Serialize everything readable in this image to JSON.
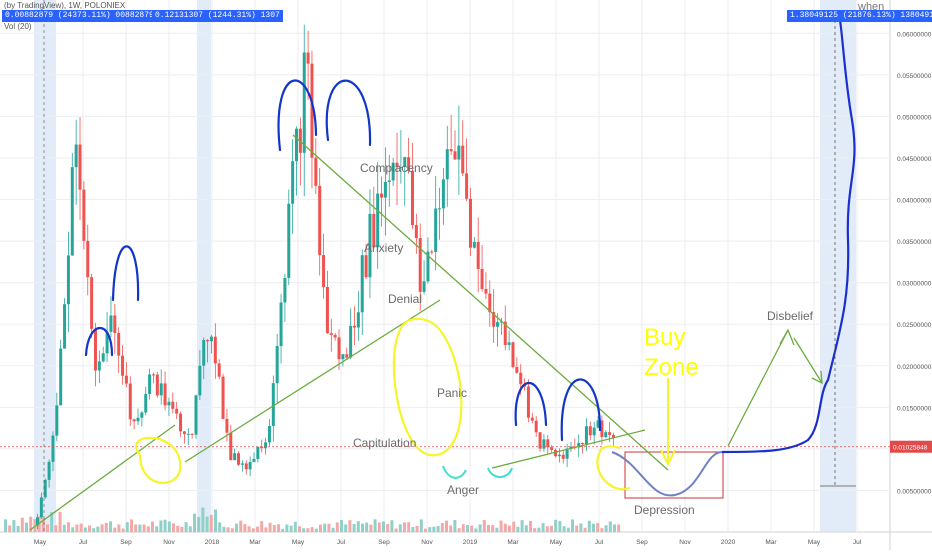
{
  "header": {
    "title": "(by TradingView), 1W, POLONIEX",
    "vol_label": "Vol (20)",
    "left_box": "0.00882879 (24373.11%) 00882879",
    "mid_box": "0.12131307 (1244.31%) 1307",
    "right_box": "1.38049125 (21876.13%) 138049125",
    "corner_note": "when"
  },
  "chart_data": {
    "type": "candlestick",
    "title": "",
    "xlabel": "",
    "ylabel": "",
    "ylim": [
      0,
      0.064
    ],
    "y_ticks": [
      "0.06000000",
      "0.05500000",
      "0.05000000",
      "0.04500000",
      "0.04000000",
      "0.03500000",
      "0.03000000",
      "0.02500000",
      "0.02000000",
      "0.01500000",
      "0.01000000",
      "0.00500000"
    ],
    "y_tick_values": [
      0.06,
      0.055,
      0.05,
      0.045,
      0.04,
      0.035,
      0.03,
      0.025,
      0.02,
      0.015,
      0.01,
      0.005
    ],
    "x_ticks": [
      "May",
      "Jul",
      "Sep",
      "Nov",
      "2018",
      "Mar",
      "May",
      "Jul",
      "Sep",
      "Nov",
      "2019",
      "Mar",
      "May",
      "Jul",
      "Sep",
      "Nov",
      "2020",
      "Mar",
      "May",
      "Jul"
    ],
    "x_tick_months": [
      4,
      6,
      8,
      10,
      12,
      14,
      16,
      18,
      20,
      22,
      24,
      26,
      28,
      30,
      32,
      34,
      36,
      38,
      40,
      42
    ],
    "current_price": "0.01025848",
    "current_value": 0.01025848,
    "series": [
      {
        "name": "price",
        "points": [
          [
            0,
            0.0005,
            0.0012
          ],
          [
            1,
            0.0012,
            0.014
          ],
          [
            2,
            0.014,
            0.05
          ],
          [
            3,
            0.05,
            0.018
          ],
          [
            4,
            0.018,
            0.026
          ],
          [
            5,
            0.026,
            0.012
          ],
          [
            6,
            0.012,
            0.019
          ],
          [
            7,
            0.019,
            0.014
          ],
          [
            8,
            0.014,
            0.012
          ],
          [
            9,
            0.012,
            0.026
          ],
          [
            10,
            0.026,
            0.009
          ],
          [
            11,
            0.009,
            0.008
          ],
          [
            12,
            0.008,
            0.012
          ],
          [
            13,
            0.012,
            0.036
          ],
          [
            14,
            0.036,
            0.056
          ],
          [
            15,
            0.056,
            0.025
          ],
          [
            16,
            0.025,
            0.02
          ],
          [
            17,
            0.02,
            0.032
          ],
          [
            18,
            0.032,
            0.042
          ],
          [
            19,
            0.042,
            0.047
          ],
          [
            20,
            0.047,
            0.028
          ],
          [
            21,
            0.028,
            0.042
          ],
          [
            22,
            0.042,
            0.046
          ],
          [
            23,
            0.046,
            0.03
          ],
          [
            24,
            0.03,
            0.025
          ],
          [
            25,
            0.025,
            0.02
          ],
          [
            26,
            0.02,
            0.011
          ],
          [
            27,
            0.011,
            0.009
          ],
          [
            28,
            0.009,
            0.0105
          ],
          [
            29,
            0.0105,
            0.013
          ],
          [
            30,
            0.013,
            0.0112
          ]
        ]
      },
      {
        "name": "projection",
        "points": [
          [
            30,
            0.0112
          ],
          [
            31,
            0.008
          ],
          [
            32,
            0.006
          ],
          [
            33,
            0.0075
          ],
          [
            34,
            0.0103
          ],
          [
            35,
            0.0103
          ],
          [
            36,
            0.0103
          ],
          [
            37,
            0.0105
          ],
          [
            38,
            0.011
          ],
          [
            39,
            0.014
          ],
          [
            40,
            0.03
          ],
          [
            40.6,
            0.062
          ]
        ]
      }
    ],
    "annotations": [
      {
        "text": "Complacency",
        "x": 18.6,
        "y": 0.046
      },
      {
        "text": "Anxiety",
        "x": 18.6,
        "y": 0.036
      },
      {
        "text": "Denial",
        "x": 20.4,
        "y": 0.026
      },
      {
        "text": "Panic",
        "x": 23.3,
        "y": 0.016
      },
      {
        "text": "Capitulation",
        "x": 18.6,
        "y": 0.0105
      },
      {
        "text": "Anger",
        "x": 23.8,
        "y": 0.006
      },
      {
        "text": "Depression",
        "x": 34.6,
        "y": 0.002
      },
      {
        "text": "Disbelief",
        "x": 38.8,
        "y": 0.0245
      },
      {
        "text": "Buy",
        "x": 32.3,
        "y": 0.024
      },
      {
        "text": "Zone",
        "x": 32.1,
        "y": 0.021
      }
    ],
    "grid": true
  },
  "colors": {
    "up": "#26a69a",
    "down": "#ef5350",
    "trend": "#6aac3f",
    "scribble_blue": "#1336c8",
    "scribble_yellow": "#f5f52a",
    "scribble_cyan": "#40e0d0",
    "projection": "#6f82c4",
    "label": "#6a6a6a",
    "price_line": "#e04a4a",
    "highlight_box": "#cfe0f4"
  }
}
